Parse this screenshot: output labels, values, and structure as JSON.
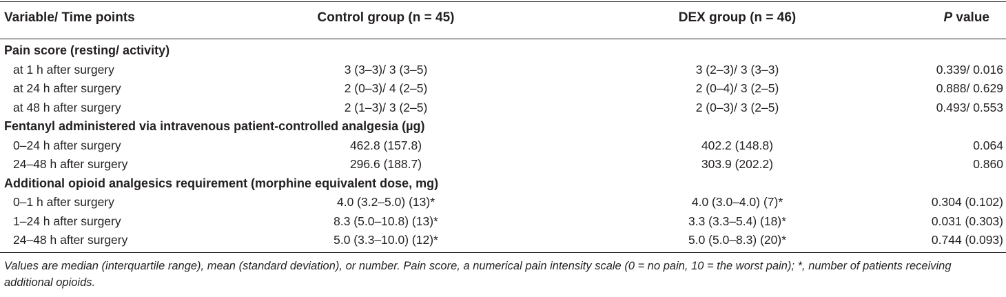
{
  "table": {
    "headers": {
      "variable": "Variable/ Time points",
      "control": "Control group (n = 45)",
      "dex": "DEX group (n = 46)",
      "p_italic": "P",
      "p_rest": " value"
    },
    "rows": [
      {
        "type": "section",
        "variable": "Pain score (resting/ activity)",
        "control": "",
        "dex": "",
        "p": ""
      },
      {
        "type": "sub",
        "variable": "at 1 h after surgery",
        "control": "3 (3–3)/ 3 (3–5)",
        "dex": "3 (2–3)/ 3 (3–3)",
        "p": "0.339/ 0.016"
      },
      {
        "type": "sub",
        "variable": "at 24 h after surgery",
        "control": "2 (0–3)/ 4 (2–5)",
        "dex": "2 (0–4)/ 3 (2–5)",
        "p": "0.888/ 0.629"
      },
      {
        "type": "sub",
        "variable": "at 48 h after surgery",
        "control": "2 (1–3)/ 3 (2–5)",
        "dex": "2 (0–3)/ 3 (2–5)",
        "p": "0.493/ 0.553"
      },
      {
        "type": "section",
        "variable": "Fentanyl administered via intravenous patient-controlled analgesia (µg)",
        "control": "",
        "dex": "",
        "p": ""
      },
      {
        "type": "sub",
        "variable": "0–24 h after surgery",
        "control": "462.8 (157.8)",
        "dex": "402.2 (148.8)",
        "p": "0.064"
      },
      {
        "type": "sub",
        "variable": "24–48 h after surgery",
        "control": "296.6 (188.7)",
        "dex": "303.9 (202.2)",
        "p": "0.860"
      },
      {
        "type": "section",
        "variable": "Additional opioid analgesics requirement (morphine equivalent dose, mg)",
        "control": "",
        "dex": "",
        "p": ""
      },
      {
        "type": "sub",
        "variable": "0–1 h after surgery",
        "control": "4.0 (3.2–5.0) (13)*",
        "dex": "4.0 (3.0–4.0) (7)*",
        "p": "0.304 (0.102)"
      },
      {
        "type": "sub",
        "variable": "1–24 h after surgery",
        "control": "8.3 (5.0–10.8) (13)*",
        "dex": "3.3 (3.3–5.4) (18)*",
        "p": "0.031 (0.303)"
      },
      {
        "type": "sub",
        "variable": "24–48 h after surgery",
        "control": "5.0 (3.3–10.0) (12)*",
        "dex": "5.0 (5.0–8.3) (20)*",
        "p": "0.744 (0.093)"
      }
    ]
  },
  "footnote": "Values are median (interquartile range), mean (standard deviation), or number. Pain score, a numerical pain intensity scale (0 = no pain, 10 = the worst pain); *, number of patients receiving additional opioids."
}
